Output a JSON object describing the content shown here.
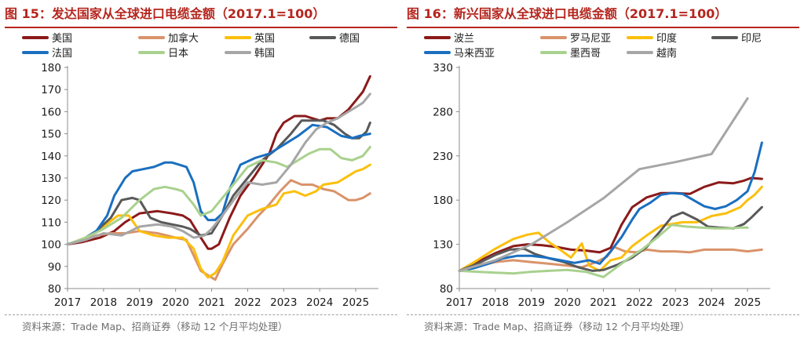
{
  "chart_data": [
    {
      "type": "line",
      "title": "图 15：发达国家从全球进口电缆金额（2017.1=100）",
      "source": "资料来源：Trade Map、招商证券（移动 12 个月平均处理）",
      "xlabel": "",
      "ylabel": "",
      "ylim": [
        80,
        180
      ],
      "yticks": [
        80,
        90,
        100,
        110,
        120,
        130,
        140,
        150,
        160,
        170,
        180
      ],
      "xlim": [
        2017,
        2025.5
      ],
      "xticks": [
        "2017",
        "2018",
        "2019",
        "2020",
        "2021",
        "2022",
        "2023",
        "2024",
        "2025"
      ],
      "grid": false,
      "legend_position": "top",
      "series": [
        {
          "name": "美国",
          "color": "#8b1a1a",
          "x": [
            2017,
            2017.4,
            2017.9,
            2018.3,
            2018.6,
            2019.0,
            2019.5,
            2019.9,
            2020.2,
            2020.4,
            2020.7,
            2020.9,
            2021.0,
            2021.2,
            2021.5,
            2021.8,
            2022.2,
            2022.6,
            2022.8,
            2023.0,
            2023.3,
            2023.6,
            2023.8,
            2024.0,
            2024.2,
            2024.5,
            2024.8,
            2025.0,
            2025.2,
            2025.4
          ],
          "y": [
            100,
            101,
            103,
            106,
            110,
            114,
            115,
            114,
            113,
            111,
            103,
            98,
            98,
            100,
            112,
            122,
            131,
            141,
            150,
            155,
            158,
            158,
            157,
            156,
            157,
            157,
            161,
            165,
            169,
            176
          ]
        },
        {
          "name": "加拿大",
          "color": "#d9936a",
          "x": [
            2017,
            2017.4,
            2017.8,
            2018.2,
            2018.6,
            2019.0,
            2019.5,
            2020.0,
            2020.3,
            2020.7,
            2020.9,
            2021.1,
            2021.3,
            2021.6,
            2022.0,
            2022.3,
            2022.6,
            2022.9,
            2023.2,
            2023.5,
            2023.8,
            2024.1,
            2024.4,
            2024.8,
            2025.0,
            2025.2,
            2025.4
          ],
          "y": [
            100,
            102,
            104,
            105,
            105,
            106,
            105,
            103,
            102,
            88,
            86,
            84,
            91,
            100,
            107,
            113,
            118,
            124,
            129,
            127,
            127,
            125,
            124,
            120,
            120,
            121,
            123
          ]
        },
        {
          "name": "英国",
          "color": "#fbbf0d",
          "x": [
            2017,
            2017.5,
            2018.0,
            2018.4,
            2018.7,
            2019.0,
            2019.4,
            2019.8,
            2020.2,
            2020.5,
            2020.7,
            2020.9,
            2021.1,
            2021.3,
            2021.6,
            2022.0,
            2022.4,
            2022.8,
            2023.0,
            2023.3,
            2023.6,
            2023.9,
            2024.1,
            2024.5,
            2024.8,
            2025.0,
            2025.2,
            2025.4
          ],
          "y": [
            100,
            103,
            108,
            113,
            113,
            106,
            104,
            103,
            103,
            98,
            89,
            85,
            87,
            92,
            104,
            113,
            116,
            118,
            123,
            124,
            122,
            124,
            127,
            128,
            131,
            133,
            134,
            136
          ]
        },
        {
          "name": "德国",
          "color": "#595959",
          "x": [
            2017,
            2017.4,
            2017.8,
            2018.2,
            2018.5,
            2018.8,
            2019.0,
            2019.3,
            2019.6,
            2019.9,
            2020.2,
            2020.4,
            2020.7,
            2021.0,
            2021.3,
            2021.6,
            2022.0,
            2022.4,
            2022.8,
            2023.2,
            2023.5,
            2023.8,
            2024.1,
            2024.4,
            2024.7,
            2024.9,
            2025.1,
            2025.3,
            2025.4
          ],
          "y": [
            100,
            102,
            106,
            112,
            120,
            121,
            120,
            112,
            110,
            109,
            108,
            107,
            104,
            105,
            113,
            122,
            130,
            138,
            143,
            150,
            156,
            156,
            156,
            154,
            150,
            148,
            148,
            151,
            155
          ]
        },
        {
          "name": "法国",
          "color": "#1a6fbf",
          "x": [
            2017,
            2017.4,
            2017.8,
            2018.1,
            2018.3,
            2018.6,
            2018.8,
            2019.1,
            2019.4,
            2019.7,
            2019.9,
            2020.1,
            2020.3,
            2020.5,
            2020.7,
            2020.9,
            2021.1,
            2021.3,
            2021.5,
            2021.8,
            2022.2,
            2022.6,
            2023.0,
            2023.4,
            2023.8,
            2024.2,
            2024.6,
            2024.9,
            2025.1,
            2025.4
          ],
          "y": [
            100,
            102,
            106,
            113,
            122,
            130,
            133,
            134,
            135,
            137,
            137,
            136,
            135,
            128,
            115,
            111,
            111,
            114,
            125,
            136,
            139,
            141,
            145,
            149,
            154,
            153,
            149,
            148,
            149,
            150
          ]
        },
        {
          "name": "日本",
          "color": "#a9d18e",
          "x": [
            2017,
            2017.5,
            2018.0,
            2018.5,
            2019.0,
            2019.4,
            2019.7,
            2020.0,
            2020.2,
            2020.5,
            2020.7,
            2021.0,
            2021.3,
            2021.6,
            2022.0,
            2022.4,
            2022.8,
            2023.1,
            2023.4,
            2023.7,
            2024.0,
            2024.3,
            2024.6,
            2024.9,
            2025.2,
            2025.4
          ],
          "y": [
            100,
            103,
            107,
            112,
            120,
            125,
            126,
            125,
            124,
            118,
            113,
            115,
            121,
            127,
            135,
            138,
            137,
            135,
            138,
            141,
            143,
            143,
            139,
            138,
            140,
            144
          ]
        },
        {
          "name": "韩国",
          "color": "#a6a6a6",
          "x": [
            2017,
            2017.5,
            2018.0,
            2018.5,
            2019.0,
            2019.5,
            2019.9,
            2020.2,
            2020.5,
            2020.8,
            2021.0,
            2021.3,
            2021.7,
            2022.0,
            2022.4,
            2022.8,
            2023.2,
            2023.6,
            2023.9,
            2024.2,
            2024.5,
            2024.8,
            2025.0,
            2025.2,
            2025.4
          ],
          "y": [
            100,
            102,
            105,
            104,
            108,
            109,
            108,
            106,
            103,
            104,
            107,
            113,
            122,
            128,
            127,
            128,
            136,
            146,
            152,
            155,
            157,
            160,
            162,
            164,
            168
          ]
        }
      ]
    },
    {
      "type": "line",
      "title": "图 16：新兴国家从全球进口电缆金额（2017.1=100）",
      "source": "资料来源：Trade Map、招商证券（移动 12 个月平均处理）",
      "xlabel": "",
      "ylabel": "",
      "ylim": [
        80,
        330
      ],
      "yticks": [
        80,
        130,
        180,
        230,
        280,
        330
      ],
      "xlim": [
        2017,
        2025.5
      ],
      "xticks": [
        "2017",
        "2018",
        "2019",
        "2020",
        "2021",
        "2022",
        "2023",
        "2024",
        "2025"
      ],
      "grid": false,
      "legend_position": "top",
      "series": [
        {
          "name": "波兰",
          "color": "#8b1a1a",
          "x": [
            2017,
            2017.5,
            2018.0,
            2018.5,
            2018.9,
            2019.3,
            2019.7,
            2020.1,
            2020.5,
            2020.9,
            2021.2,
            2021.5,
            2021.8,
            2022.2,
            2022.6,
            2023.0,
            2023.4,
            2023.8,
            2024.2,
            2024.6,
            2024.9,
            2025.1,
            2025.4
          ],
          "y": [
            100,
            110,
            120,
            128,
            130,
            129,
            127,
            124,
            123,
            121,
            126,
            152,
            172,
            183,
            188,
            188,
            187,
            195,
            200,
            199,
            202,
            205,
            204
          ]
        },
        {
          "name": "罗马尼亚",
          "color": "#d9936a",
          "x": [
            2017,
            2017.5,
            2018.0,
            2018.5,
            2019.0,
            2019.5,
            2020.0,
            2020.4,
            2020.8,
            2021.1,
            2021.3,
            2021.6,
            2021.9,
            2022.2,
            2022.6,
            2023.0,
            2023.4,
            2023.8,
            2024.2,
            2024.6,
            2025.0,
            2025.4
          ],
          "y": [
            100,
            105,
            110,
            112,
            110,
            108,
            106,
            104,
            110,
            116,
            127,
            122,
            121,
            124,
            122,
            122,
            121,
            124,
            124,
            124,
            122,
            124
          ]
        },
        {
          "name": "印度",
          "color": "#fbbf0d",
          "x": [
            2017,
            2017.5,
            2018.0,
            2018.5,
            2018.9,
            2019.2,
            2019.5,
            2019.8,
            2020.1,
            2020.4,
            2020.6,
            2020.9,
            2021.2,
            2021.5,
            2021.8,
            2022.2,
            2022.6,
            2022.9,
            2023.2,
            2023.6,
            2024.0,
            2024.4,
            2024.8,
            2025.0,
            2025.2,
            2025.4
          ],
          "y": [
            100,
            112,
            125,
            136,
            141,
            143,
            132,
            124,
            115,
            131,
            106,
            100,
            112,
            115,
            128,
            140,
            151,
            153,
            155,
            155,
            162,
            165,
            172,
            180,
            186,
            195
          ]
        },
        {
          "name": "印尼",
          "color": "#595959",
          "x": [
            2017,
            2017.5,
            2018.0,
            2018.4,
            2018.8,
            2019.1,
            2019.5,
            2019.9,
            2020.3,
            2020.7,
            2021.0,
            2021.4,
            2021.8,
            2022.2,
            2022.6,
            2022.9,
            2023.2,
            2023.6,
            2023.9,
            2024.2,
            2024.6,
            2024.9,
            2025.1,
            2025.4
          ],
          "y": [
            100,
            108,
            118,
            124,
            125,
            119,
            114,
            110,
            104,
            100,
            101,
            107,
            115,
            127,
            146,
            161,
            166,
            158,
            150,
            149,
            148,
            153,
            160,
            172
          ]
        },
        {
          "name": "马来西亚",
          "color": "#1a6fbf",
          "x": [
            2017,
            2017.4,
            2017.8,
            2018.2,
            2018.6,
            2019.0,
            2019.4,
            2019.8,
            2020.2,
            2020.6,
            2020.9,
            2021.2,
            2021.5,
            2021.8,
            2022.0,
            2022.3,
            2022.6,
            2022.9,
            2023.2,
            2023.5,
            2023.8,
            2024.1,
            2024.4,
            2024.7,
            2025.0,
            2025.2,
            2025.4
          ],
          "y": [
            100,
            103,
            108,
            114,
            117,
            117,
            115,
            112,
            109,
            112,
            108,
            122,
            138,
            158,
            170,
            177,
            186,
            188,
            187,
            180,
            173,
            170,
            173,
            180,
            190,
            212,
            245
          ]
        },
        {
          "name": "墨西哥",
          "color": "#a9d18e",
          "x": [
            2017,
            2017.5,
            2018.0,
            2018.5,
            2019.0,
            2019.5,
            2020.0,
            2020.5,
            2021.0,
            2021.3,
            2021.7,
            2022.1,
            2022.5,
            2022.9,
            2023.3,
            2023.7,
            2024.1,
            2024.5,
            2024.8,
            2025.0
          ],
          "y": [
            100,
            99,
            98,
            97,
            99,
            100,
            101,
            99,
            93,
            102,
            114,
            125,
            138,
            152,
            150,
            149,
            148,
            148,
            149,
            149
          ]
        },
        {
          "name": "越南",
          "color": "#a6a6a6",
          "x": [
            2017,
            2018.0,
            2019.0,
            2020.0,
            2021.0,
            2022.0,
            2023.0,
            2024.0,
            2025.0
          ],
          "y": [
            100,
            112,
            130,
            155,
            182,
            215,
            223,
            232,
            295
          ]
        }
      ]
    }
  ]
}
